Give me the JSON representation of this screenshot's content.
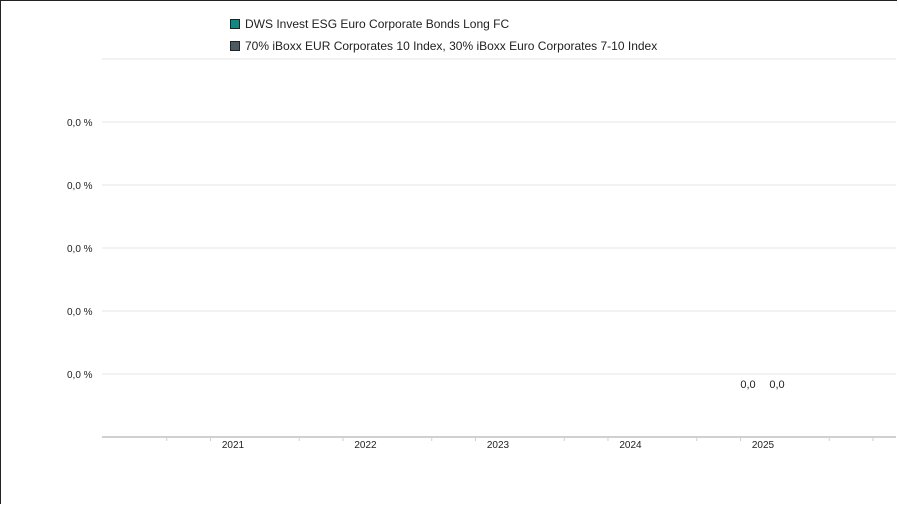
{
  "chart_data": {
    "type": "bar",
    "categories": [
      "2021",
      "2022",
      "2023",
      "2024",
      "2025"
    ],
    "series": [
      {
        "name": "DWS Invest ESG Euro Corporate Bonds Long FC",
        "color": "#0e8a84",
        "values": [
          null,
          null,
          null,
          null,
          0.0
        ],
        "labels": [
          null,
          null,
          null,
          null,
          "0,0"
        ]
      },
      {
        "name": "70% iBoxx EUR Corporates 10 Index, 30% iBoxx Euro Corporates 7-10 Index",
        "color": "#4b5a63",
        "values": [
          null,
          null,
          null,
          null,
          0.0
        ],
        "labels": [
          null,
          null,
          null,
          null,
          "0,0"
        ]
      }
    ],
    "y_tick_labels": [
      "0,0 %",
      "0,0 %",
      "0,0 %",
      "0,0 %",
      "0,0 %"
    ],
    "grid": true,
    "legend_position": "top-left"
  }
}
